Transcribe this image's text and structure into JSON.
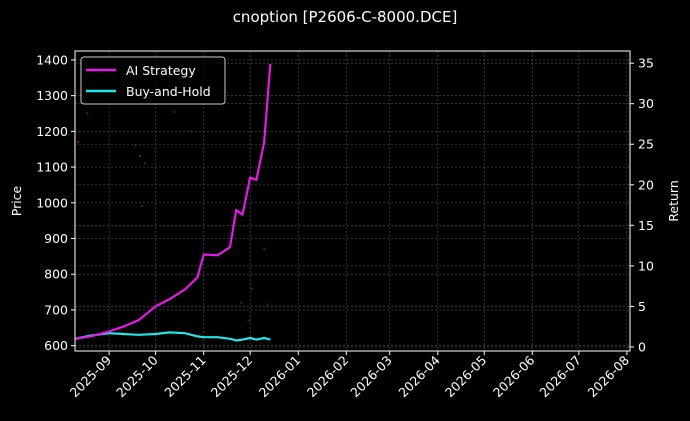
{
  "title": "cnoption [P2606-C-8000.DCE]",
  "colors": {
    "background": "#000000",
    "ai_strategy": "#e619e6",
    "buy_and_hold": "#21e6e6",
    "grid": "#555555",
    "axes": "#ffffff",
    "price_dots": "#6b0a2a"
  },
  "legend": {
    "items": [
      {
        "label": "AI Strategy",
        "color": "#e619e6"
      },
      {
        "label": "Buy-and-Hold",
        "color": "#21e6e6"
      }
    ]
  },
  "axes": {
    "left_label": "Price",
    "right_label": "Return",
    "left_ticks": [
      "600",
      "700",
      "800",
      "900",
      "1000",
      "1100",
      "1200",
      "1300",
      "1400"
    ],
    "right_ticks": [
      "0",
      "5",
      "10",
      "15",
      "20",
      "25",
      "30",
      "35"
    ],
    "x_ticks": [
      "2025-09",
      "2025-10",
      "2025-11",
      "2025-12",
      "2026-01",
      "2026-02",
      "2026-03",
      "2026-04",
      "2026-05",
      "2026-06",
      "2026-07",
      "2026-08"
    ]
  },
  "chart_data": {
    "type": "line",
    "title": "cnoption [P2606-C-8000.DCE]",
    "xlabel": "",
    "ylabel": "Price",
    "ylabel_right": "Return",
    "ylim": [
      585,
      1425
    ],
    "ylim_right": [
      -0.5,
      36.5
    ],
    "xlim": [
      "2025-08-10",
      "2026-08-03"
    ],
    "grid": true,
    "legend_position": "upper left",
    "x": [
      "2025-08-10",
      "2025-08-20",
      "2025-09-01",
      "2025-09-10",
      "2025-09-20",
      "2025-10-01",
      "2025-10-10",
      "2025-10-20",
      "2025-10-28",
      "2025-11-01",
      "2025-11-10",
      "2025-11-18",
      "2025-11-22",
      "2025-11-26",
      "2025-12-01",
      "2025-12-05",
      "2025-12-10",
      "2025-12-14"
    ],
    "series": [
      {
        "name": "AI Strategy",
        "axis": "right",
        "values": [
          1.0,
          1.3,
          1.9,
          2.5,
          3.3,
          5.0,
          5.9,
          7.1,
          8.6,
          11.4,
          11.3,
          12.3,
          16.9,
          16.3,
          20.9,
          20.6,
          25.2,
          34.9
        ]
      },
      {
        "name": "Buy-and-Hold",
        "axis": "right",
        "values": [
          1.0,
          1.4,
          1.7,
          1.6,
          1.5,
          1.6,
          1.8,
          1.7,
          1.3,
          1.2,
          1.2,
          1.0,
          0.8,
          0.9,
          1.1,
          0.9,
          1.1,
          0.9
        ]
      }
    ],
    "scatter_price_points": [
      {
        "x": "2025-08-18",
        "y": 1250
      },
      {
        "x": "2025-08-12",
        "y": 1170
      },
      {
        "x": "2025-09-03",
        "y": 1200
      },
      {
        "x": "2025-09-18",
        "y": 1160
      },
      {
        "x": "2025-09-21",
        "y": 1130
      },
      {
        "x": "2025-09-24",
        "y": 1110
      },
      {
        "x": "2025-10-13",
        "y": 1255
      },
      {
        "x": "2025-10-24",
        "y": 1200
      },
      {
        "x": "2025-09-22",
        "y": 990
      },
      {
        "x": "2025-12-02",
        "y": 760
      },
      {
        "x": "2025-12-10",
        "y": 870
      },
      {
        "x": "2025-12-12",
        "y": 715
      },
      {
        "x": "2025-11-25",
        "y": 720
      },
      {
        "x": "2025-11-30",
        "y": 670
      }
    ]
  }
}
